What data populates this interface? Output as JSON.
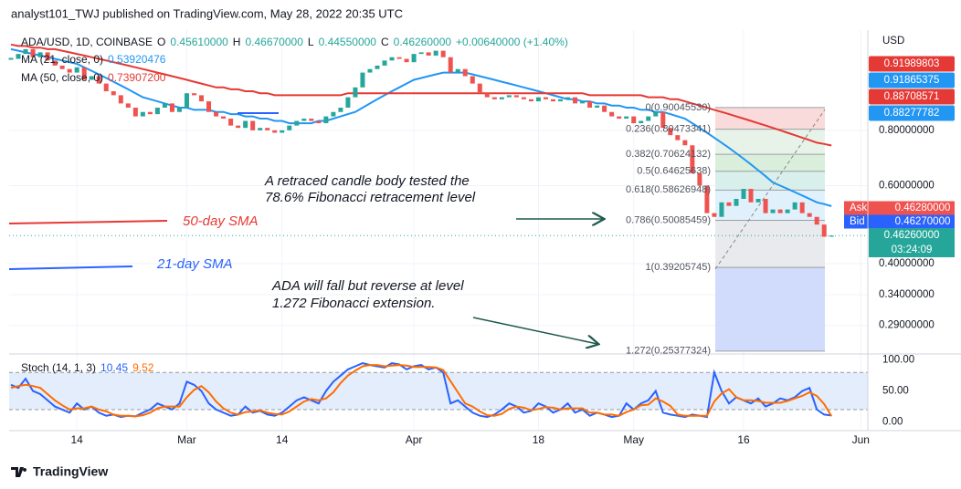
{
  "header": {
    "text": "analyst101_TWJ published on TradingView.com, May 28, 2022 20:35 UTC"
  },
  "brand": "TradingView",
  "chart_data": [
    {
      "type": "candlestick",
      "symbol": "ADA/USD, 1D, COINBASE",
      "ohlc": [
        {
          "label": "O",
          "value": "0.45610000"
        },
        {
          "label": "H",
          "value": "0.46670000"
        },
        {
          "label": "L",
          "value": "0.44550000"
        },
        {
          "label": "C",
          "value": "0.46260000"
        }
      ],
      "change": "+0.00640000 (+1.40%)",
      "y_label": "USD",
      "yscale": "log",
      "ylim": [
        0.25,
        1.347
      ],
      "yticks": [
        {
          "value": 0.8,
          "label": "0.80000000"
        },
        {
          "value": 0.6,
          "label": "0.60000000"
        },
        {
          "value": 0.4,
          "label": "0.40000000"
        },
        {
          "value": 0.34,
          "label": "0.34000000"
        },
        {
          "value": 0.29,
          "label": "0.29000000"
        }
      ],
      "grid": true,
      "up_color": "#26a69a",
      "down_color": "#ef5350",
      "categories": [
        null,
        null,
        null,
        null,
        null,
        null,
        null,
        null,
        null,
        "14",
        null,
        null,
        null,
        null,
        null,
        null,
        null,
        null,
        null,
        null,
        null,
        null,
        null,
        null,
        "Mar",
        null,
        null,
        null,
        null,
        null,
        null,
        null,
        null,
        null,
        null,
        null,
        null,
        "14",
        null,
        null,
        null,
        null,
        null,
        null,
        null,
        null,
        null,
        null,
        null,
        null,
        null,
        null,
        null,
        null,
        null,
        "Apr",
        null,
        null,
        null,
        null,
        null,
        null,
        null,
        null,
        null,
        null,
        null,
        null,
        null,
        null,
        null,
        null,
        "18",
        null,
        null,
        null,
        null,
        null,
        null,
        null,
        null,
        null,
        null,
        null,
        null,
        "May",
        null,
        null,
        null,
        null,
        null,
        null,
        null,
        null,
        null,
        null,
        null,
        null,
        null,
        null,
        "16",
        null,
        null,
        null,
        null,
        null,
        null,
        null,
        null,
        null,
        null,
        null,
        null,
        null,
        null,
        null,
        "Jun",
        null
      ],
      "close": [
        1.16,
        1.19,
        1.22,
        1.17,
        1.2,
        1.15,
        1.12,
        1.1,
        1.08,
        1.11,
        1.04,
        1.06,
        1.02,
        0.98,
        0.96,
        0.92,
        0.9,
        0.86,
        0.88,
        0.87,
        0.9,
        0.92,
        0.88,
        0.9,
        0.97,
        0.96,
        0.93,
        0.88,
        0.86,
        0.85,
        0.82,
        0.81,
        0.84,
        0.8,
        0.81,
        0.8,
        0.79,
        0.8,
        0.82,
        0.84,
        0.85,
        0.84,
        0.83,
        0.86,
        0.88,
        0.9,
        0.95,
        1.0,
        1.08,
        1.1,
        1.12,
        1.15,
        1.17,
        1.16,
        1.14,
        1.19,
        1.2,
        1.18,
        1.21,
        1.17,
        1.08,
        1.1,
        1.06,
        1.02,
        0.97,
        0.95,
        0.94,
        0.95,
        0.96,
        0.95,
        0.94,
        0.93,
        0.95,
        0.94,
        0.93,
        0.94,
        0.95,
        0.92,
        0.93,
        0.9,
        0.91,
        0.88,
        0.86,
        0.85,
        0.86,
        0.83,
        0.84,
        0.86,
        0.88,
        0.81,
        0.78,
        0.76,
        0.74,
        0.64,
        0.6,
        0.52,
        0.51,
        0.55,
        0.54,
        0.56,
        0.59,
        0.55,
        0.56,
        0.52,
        0.53,
        0.52,
        0.53,
        0.55,
        0.52,
        0.51,
        0.49,
        0.46,
        0.4626,
        null,
        null,
        null,
        null,
        null
      ],
      "series": [
        {
          "name": "MA (21, close, 0)",
          "color": "#2196f3",
          "value_label": "0.53920476",
          "values": [
            1.22,
            1.21,
            1.2,
            1.19,
            1.18,
            1.17,
            1.16,
            1.15,
            1.14,
            1.13,
            1.11,
            1.09,
            1.07,
            1.05,
            1.03,
            1.01,
            0.99,
            0.97,
            0.95,
            0.94,
            0.93,
            0.92,
            0.91,
            0.9,
            0.9,
            0.89,
            0.89,
            0.89,
            0.88,
            0.88,
            0.87,
            0.87,
            0.86,
            0.86,
            0.85,
            0.85,
            0.84,
            0.84,
            0.83,
            0.83,
            0.83,
            0.83,
            0.84,
            0.84,
            0.85,
            0.86,
            0.87,
            0.88,
            0.9,
            0.92,
            0.94,
            0.96,
            0.98,
            1.0,
            1.02,
            1.04,
            1.05,
            1.06,
            1.07,
            1.08,
            1.08,
            1.08,
            1.08,
            1.07,
            1.06,
            1.05,
            1.04,
            1.03,
            1.02,
            1.01,
            1.0,
            0.99,
            0.98,
            0.97,
            0.96,
            0.95,
            0.94,
            0.94,
            0.93,
            0.93,
            0.92,
            0.92,
            0.91,
            0.91,
            0.9,
            0.9,
            0.89,
            0.89,
            0.88,
            0.88,
            0.87,
            0.86,
            0.85,
            0.83,
            0.81,
            0.79,
            0.77,
            0.75,
            0.73,
            0.71,
            0.69,
            0.67,
            0.65,
            0.63,
            0.61,
            0.6,
            0.59,
            0.58,
            0.57,
            0.56,
            0.55,
            0.545,
            0.53920476,
            null,
            null,
            null,
            null,
            null
          ]
        },
        {
          "name": "MA (50, close, 0)",
          "color": "#e53935",
          "value_label": "0.73907200",
          "values": [
            1.25,
            1.24,
            1.24,
            1.23,
            1.23,
            1.22,
            1.22,
            1.21,
            1.2,
            1.19,
            1.18,
            1.17,
            1.16,
            1.15,
            1.14,
            1.13,
            1.12,
            1.11,
            1.1,
            1.09,
            1.08,
            1.07,
            1.06,
            1.05,
            1.04,
            1.03,
            1.02,
            1.01,
            1.0,
            1.0,
            0.99,
            0.99,
            0.98,
            0.98,
            0.97,
            0.97,
            0.96,
            0.96,
            0.96,
            0.96,
            0.96,
            0.96,
            0.96,
            0.96,
            0.96,
            0.96,
            0.97,
            0.97,
            0.97,
            0.97,
            0.97,
            0.97,
            0.97,
            0.97,
            0.97,
            0.97,
            0.97,
            0.97,
            0.97,
            0.97,
            0.97,
            0.97,
            0.97,
            0.97,
            0.97,
            0.97,
            0.97,
            0.97,
            0.97,
            0.97,
            0.97,
            0.97,
            0.97,
            0.97,
            0.97,
            0.97,
            0.97,
            0.97,
            0.97,
            0.96,
            0.96,
            0.96,
            0.96,
            0.96,
            0.96,
            0.96,
            0.96,
            0.95,
            0.95,
            0.95,
            0.94,
            0.94,
            0.93,
            0.92,
            0.91,
            0.9,
            0.89,
            0.88,
            0.87,
            0.86,
            0.85,
            0.84,
            0.83,
            0.82,
            0.81,
            0.8,
            0.79,
            0.78,
            0.77,
            0.76,
            0.75,
            0.745,
            0.739072,
            null,
            null,
            null,
            null,
            null
          ]
        }
      ],
      "price_labels": [
        {
          "text": "0.91989803",
          "color": "#e53935"
        },
        {
          "text": "0.91865375",
          "color": "#2196f3"
        },
        {
          "text": "0.88708571",
          "color": "#e53935"
        },
        {
          "text": "0.88277782",
          "color": "#2196f3"
        }
      ],
      "quotes": [
        {
          "name": "Ask",
          "text": "0.46280000",
          "color": "#ef5350"
        },
        {
          "name": "Bid",
          "text": "0.46270000",
          "color": "#2962ff"
        }
      ],
      "last_price": {
        "text": "0.46260000",
        "countdown": "03:24:09",
        "color": "#26a69a"
      },
      "fibonacci": [
        {
          "value": 0.9004553,
          "label": "0(0.90045530)",
          "color": "#f9d5d5"
        },
        {
          "value": 0.80473341,
          "label": "0.236(0.80473341)",
          "color": "#e3f1e4"
        },
        {
          "value": 0.70624132,
          "label": "0.382(0.70624132)",
          "color": "#d3ecd5"
        },
        {
          "value": 0.64625638,
          "label": "0.5(0.64625638)",
          "color": "#d2ece8"
        },
        {
          "value": 0.58626948,
          "label": "0.618(0.58626948)",
          "color": "#dceefb"
        },
        {
          "value": 0.50085459,
          "label": "0.786(0.50085459)",
          "color": "#e4e6ea"
        },
        {
          "value": 0.39205745,
          "label": "1(0.39205745)",
          "color": "#c9d6fb"
        },
        {
          "value": 0.25377324,
          "label": "1.272(0.25377324)"
        }
      ],
      "annotations": [
        {
          "text": "A retraced candle body tested the",
          "color": "#131722"
        },
        {
          "text": "78.6% Fibonacci retracement level",
          "color": "#131722"
        },
        {
          "text": "50-day SMA",
          "color": "#e53935"
        },
        {
          "text": "21-day SMA",
          "color": "#2962ff"
        },
        {
          "text": "ADA will fall but reverse at level",
          "color": "#131722"
        },
        {
          "text": "1.272 Fibonacci extension.",
          "color": "#131722"
        }
      ]
    },
    {
      "type": "line",
      "title": "Stoch (14, 1, 3)",
      "ylim": [
        -14,
        104
      ],
      "yticks": [
        {
          "value": 100,
          "label": "100.00"
        },
        {
          "value": 50,
          "label": "50.00"
        },
        {
          "value": 0,
          "label": "0.00"
        }
      ],
      "bands": [
        80,
        20
      ],
      "band_color": "#e3edfb",
      "series": [
        {
          "name": "%K",
          "color": "#2962ff",
          "values": [
            60,
            55,
            70,
            50,
            45,
            35,
            25,
            20,
            15,
            30,
            20,
            25,
            15,
            10,
            12,
            8,
            10,
            9,
            15,
            20,
            30,
            25,
            20,
            30,
            65,
            60,
            50,
            30,
            20,
            15,
            10,
            12,
            25,
            15,
            18,
            12,
            10,
            15,
            25,
            35,
            40,
            35,
            30,
            50,
            65,
            75,
            85,
            90,
            95,
            92,
            90,
            88,
            95,
            93,
            85,
            90,
            92,
            85,
            88,
            80,
            30,
            35,
            25,
            15,
            10,
            8,
            12,
            20,
            30,
            25,
            15,
            18,
            30,
            25,
            15,
            20,
            30,
            15,
            20,
            10,
            15,
            12,
            8,
            10,
            30,
            20,
            30,
            35,
            50,
            15,
            12,
            10,
            8,
            12,
            10,
            8,
            80,
            50,
            30,
            40,
            35,
            30,
            38,
            25,
            30,
            38,
            35,
            40,
            50,
            55,
            20,
            12,
            10.45,
            null,
            null,
            null,
            null,
            null
          ]
        },
        {
          "name": "%D",
          "color": "#ff6d00",
          "values": [
            55,
            58,
            60,
            58,
            55,
            45,
            35,
            27,
            20,
            22,
            22,
            25,
            20,
            17,
            12,
            10,
            10,
            9,
            11,
            15,
            22,
            25,
            25,
            25,
            40,
            52,
            58,
            48,
            33,
            22,
            15,
            12,
            16,
            17,
            19,
            15,
            13,
            12,
            17,
            25,
            33,
            37,
            35,
            38,
            48,
            63,
            75,
            83,
            90,
            92,
            92,
            90,
            91,
            92,
            91,
            89,
            89,
            89,
            88,
            84,
            66,
            48,
            30,
            25,
            17,
            11,
            10,
            13,
            21,
            25,
            23,
            19,
            21,
            24,
            23,
            20,
            22,
            22,
            22,
            15,
            15,
            12,
            12,
            10,
            16,
            20,
            27,
            28,
            38,
            33,
            26,
            12,
            10,
            10,
            10,
            10,
            33,
            46,
            53,
            40,
            35,
            35,
            34,
            31,
            31,
            31,
            34,
            38,
            42,
            48,
            42,
            29,
            9.52,
            null,
            null,
            null,
            null,
            null
          ]
        }
      ]
    }
  ]
}
